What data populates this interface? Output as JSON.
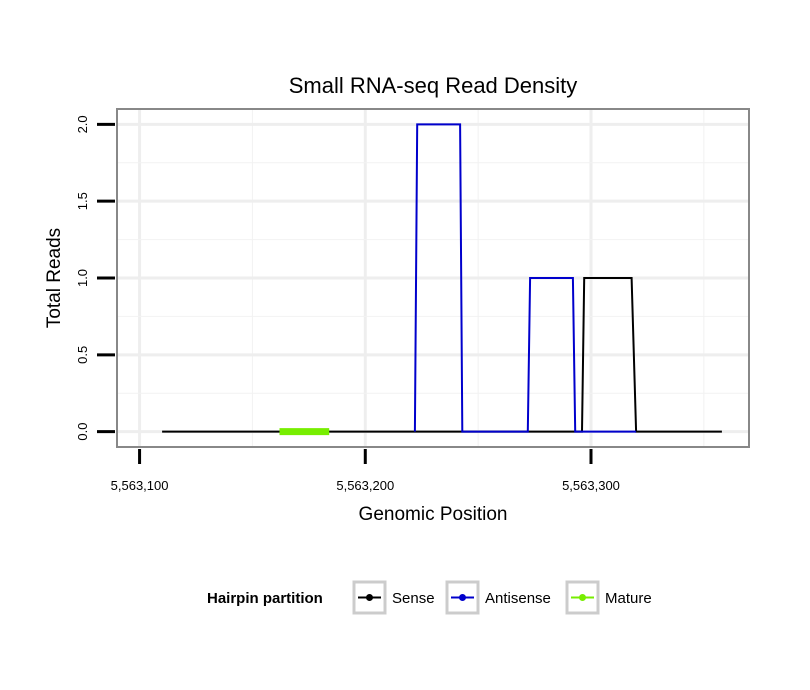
{
  "chart_data": {
    "type": "line",
    "title": "Small RNA-seq Read Density",
    "xlabel": "Genomic Position",
    "ylabel": "Total Reads",
    "xlim": [
      5563090,
      5563370
    ],
    "ylim": [
      -0.1,
      2.1
    ],
    "x_ticks": [
      {
        "value": 5563100,
        "label": "5,563,100"
      },
      {
        "value": 5563200,
        "label": "5,563,200"
      },
      {
        "value": 5563300,
        "label": "5,563,300"
      }
    ],
    "y_ticks": [
      {
        "value": 0.0,
        "label": "0.0"
      },
      {
        "value": 0.5,
        "label": "0.5"
      },
      {
        "value": 1.0,
        "label": "1.0"
      },
      {
        "value": 1.5,
        "label": "1.5"
      },
      {
        "value": 2.0,
        "label": "2.0"
      }
    ],
    "grid": true,
    "series": [
      {
        "name": "Sense",
        "color": "#000000",
        "x": [
          5563110,
          5563296,
          5563297,
          5563318,
          5563320,
          5563358
        ],
        "y": [
          0,
          0,
          1,
          1,
          0,
          0
        ]
      },
      {
        "name": "Antisense",
        "color": "#0000cc",
        "x": [
          5563222,
          5563223,
          5563242,
          5563243,
          5563272,
          5563273,
          5563292,
          5563293,
          5563320
        ],
        "y": [
          0,
          2,
          2,
          0,
          0,
          1,
          1,
          0,
          0
        ]
      },
      {
        "name": "Mature",
        "color": "#77ee00",
        "x": [
          5563162,
          5563184
        ],
        "y": [
          0,
          0
        ]
      }
    ],
    "legend": {
      "title": "Hairpin partition",
      "position": "bottom",
      "entries": [
        "Sense",
        "Antisense",
        "Mature"
      ]
    }
  }
}
